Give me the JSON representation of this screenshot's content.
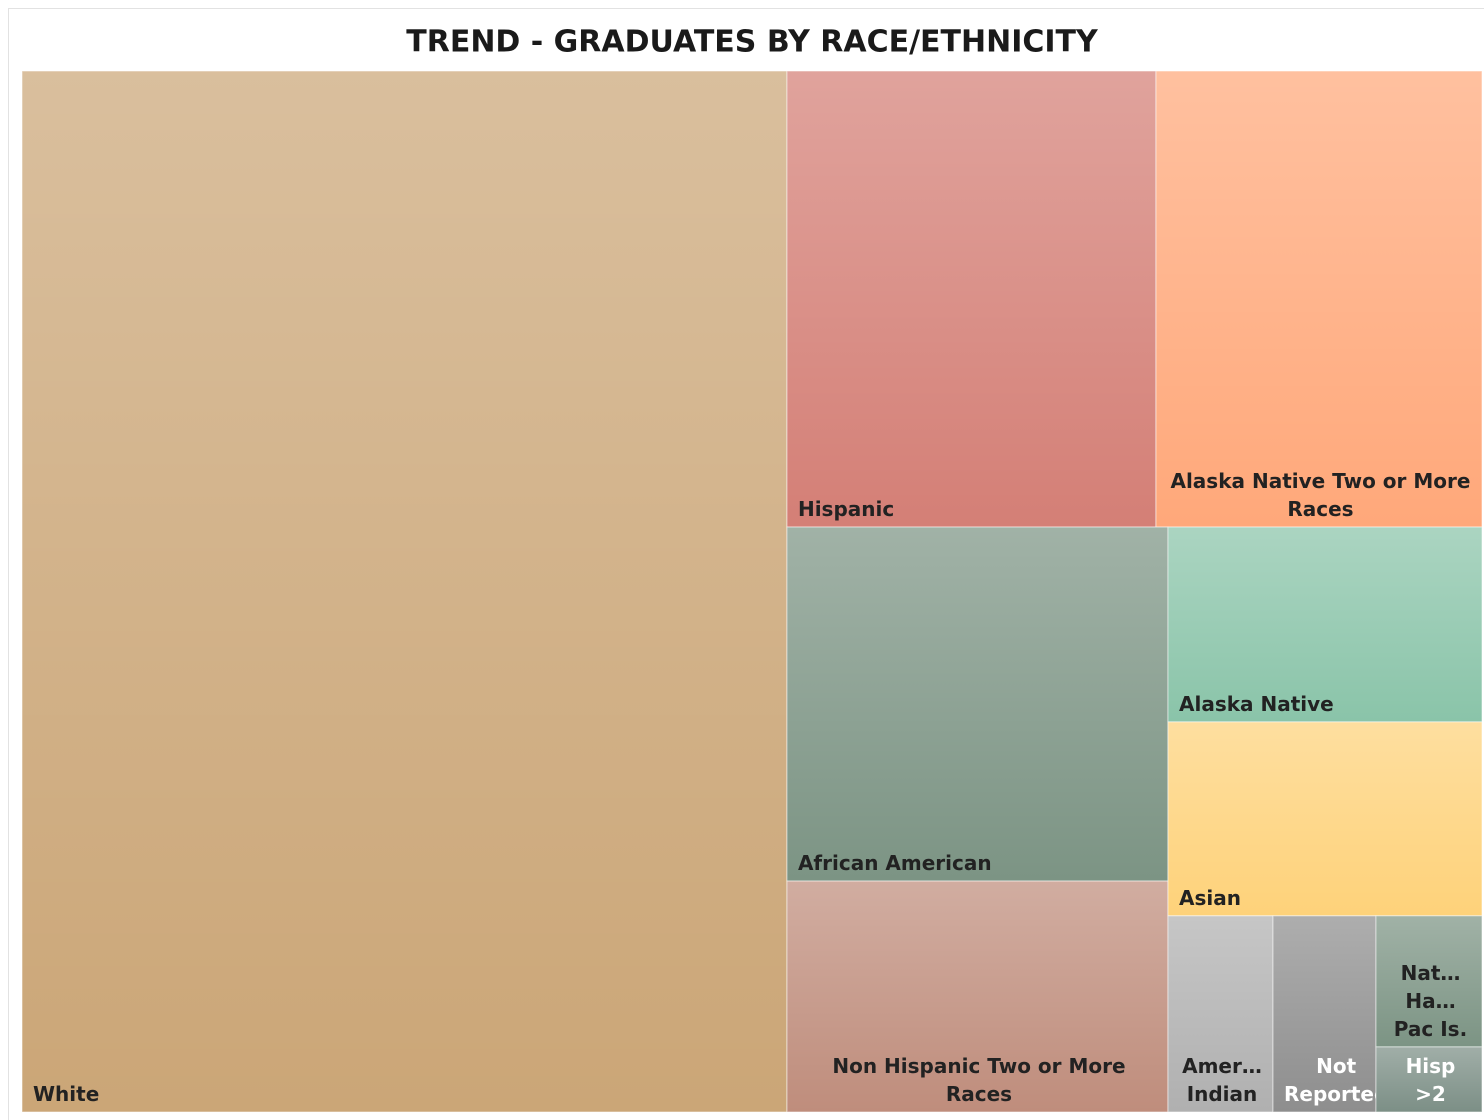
{
  "chart_data": {
    "type": "treemap",
    "title": "TREND - GRADUATES BY RACE/ETHNICITY",
    "categories": [
      "White",
      "Hispanic",
      "Alaska Native Two or More Races",
      "African American",
      "Non Hispanic Two or More Races",
      "Alaska Native",
      "Asian",
      "Amer… Indian",
      "Not Reported",
      "Nat… Ha… Pac Is.",
      "Hisp >2"
    ],
    "values": [
      7964,
      1683,
      1487,
      1349,
      880,
      612,
      609,
      206,
      202,
      139,
      69
    ],
    "colors": [
      "#cba677",
      "#d47f76",
      "#ffa87a",
      "#7c9484",
      "#bf8d7c",
      "#8ac4a9",
      "#fed27a",
      "#b0b0b0",
      "#8e8e8e",
      "#7c9484",
      "#7c8f86"
    ],
    "label_colors": [
      "#222222",
      "#222222",
      "#222222",
      "#222222",
      "#222222",
      "#222222",
      "#222222",
      "#222222",
      "#ffffff",
      "#222222",
      "#ffffff"
    ]
  }
}
